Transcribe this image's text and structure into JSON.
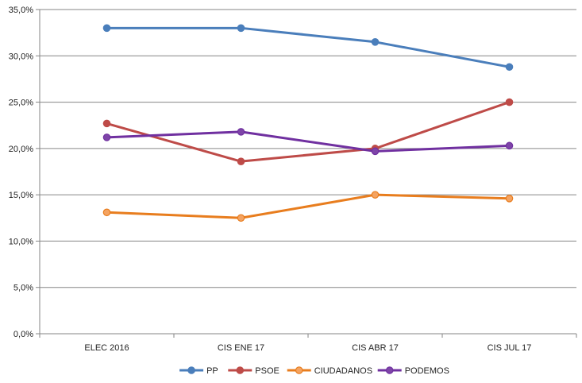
{
  "chart_data": {
    "type": "line",
    "categories": [
      "ELEC 2016",
      "CIS ENE 17",
      "CIS ABR 17",
      "CIS JUL 17"
    ],
    "series": [
      {
        "name": "PP",
        "values": [
          33.0,
          33.0,
          31.5,
          28.8
        ],
        "color": "#4a7ebb",
        "marker_fill": "#4a7ebb"
      },
      {
        "name": "PSOE",
        "values": [
          22.7,
          18.6,
          20.0,
          25.0
        ],
        "color": "#be4b48",
        "marker_fill": "#be4b48"
      },
      {
        "name": "CIUDADANOS",
        "values": [
          13.1,
          12.5,
          15.0,
          14.6
        ],
        "color": "#e87d1e",
        "marker_fill": "#f4a361"
      },
      {
        "name": "PODEMOS",
        "values": [
          21.2,
          21.8,
          19.7,
          20.3
        ],
        "color": "#7030a0",
        "marker_fill": "#7e45a8"
      }
    ],
    "yticks": [
      "0,0%",
      "5,0%",
      "10,0%",
      "15,0%",
      "20,0%",
      "25,0%",
      "30,0%",
      "35,0%"
    ],
    "ylim": [
      0,
      35
    ],
    "grid": true,
    "legend_position": "bottom",
    "title": "",
    "xlabel": "",
    "ylabel": ""
  }
}
